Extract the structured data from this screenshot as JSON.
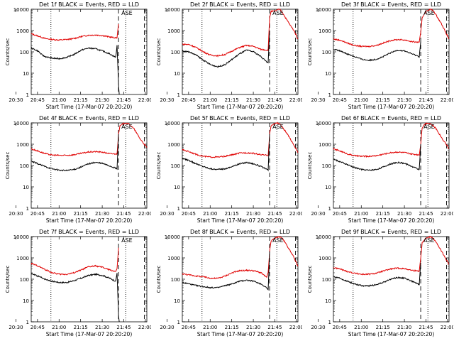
{
  "colors": {
    "events": "#000000",
    "lld": "#e00000",
    "axes": "#000000",
    "background": "#ffffff"
  },
  "x_tick_labels": [
    "20:30",
    "20:45",
    "21:00",
    "21:15",
    "21:30",
    "21:45",
    "22:00"
  ],
  "y_tick_labels": [
    "1",
    "10",
    "100",
    "1000",
    "10000"
  ],
  "markers": {
    "dotted_start_min": 34,
    "dashed_start_min": 81,
    "dotted_mid_min": 86,
    "dashed_end_min": 99
  },
  "chart_data": [
    {
      "type": "line",
      "title": "Det 1f BLACK = Events, RED = LLD",
      "xlabel": "Start Time (17-Mar-07 20:20:20)",
      "ylabel": "Counts/sec",
      "x_units": "minutes after 20:20:20",
      "xlim": [
        20.3,
        100.7
      ],
      "ylim": [
        1,
        10000
      ],
      "yscale": "log",
      "annotations": [
        "ASE"
      ],
      "series": [
        {
          "color": "#e00000",
          "x": [
            20.3,
            25,
            30,
            35,
            40,
            45,
            50,
            55,
            60,
            65,
            70,
            75,
            79,
            80,
            81
          ],
          "values": [
            700,
            560,
            420,
            380,
            360,
            380,
            420,
            520,
            600,
            620,
            580,
            500,
            450,
            470,
            2000
          ]
        },
        {
          "color": "#000000",
          "x": [
            20.3,
            25,
            28,
            30,
            35,
            40,
            45,
            50,
            55,
            60,
            65,
            70,
            75,
            79,
            80,
            81,
            81.5
          ],
          "values": [
            150,
            110,
            70,
            60,
            50,
            48,
            55,
            75,
            120,
            150,
            140,
            110,
            80,
            55,
            200,
            3,
            1
          ]
        }
      ]
    },
    {
      "type": "line",
      "title": "Det 2f BLACK = Events, RED = LLD",
      "xlabel": "Start Time (17-Mar-07 20:20:20)",
      "ylabel": "Counts/sec",
      "x_units": "minutes after 20:20:20",
      "xlim": [
        20.3,
        100.7
      ],
      "ylim": [
        1,
        10000
      ],
      "yscale": "log",
      "annotations": [
        "ASE"
      ],
      "series": [
        {
          "color": "#e00000",
          "x": [
            20.3,
            25,
            30,
            35,
            40,
            45,
            50,
            55,
            60,
            65,
            70,
            75,
            80,
            81,
            82,
            84,
            86,
            88,
            90,
            92,
            94,
            96,
            98,
            100.7
          ],
          "values": [
            230,
            220,
            160,
            100,
            70,
            65,
            75,
            110,
            160,
            200,
            180,
            130,
            120,
            4000,
            8000,
            8000,
            9000,
            10000,
            7000,
            4000,
            2500,
            1500,
            1000,
            400
          ]
        },
        {
          "color": "#000000",
          "x": [
            20.3,
            25,
            30,
            35,
            40,
            45,
            50,
            55,
            60,
            65,
            70,
            75,
            80,
            81
          ],
          "values": [
            110,
            100,
            70,
            40,
            25,
            20,
            25,
            45,
            80,
            120,
            100,
            60,
            30,
            1000
          ]
        }
      ]
    },
    {
      "type": "line",
      "title": "Det 3f BLACK = Events, RED = LLD",
      "xlabel": "Start Time (17-Mar-07 20:20:20)",
      "ylabel": "Counts/sec",
      "x_units": "minutes after 20:20:20",
      "xlim": [
        20.3,
        100.7
      ],
      "ylim": [
        1,
        10000
      ],
      "yscale": "log",
      "annotations": [
        "ASE"
      ],
      "series": [
        {
          "color": "#e00000",
          "x": [
            20.3,
            25,
            30,
            35,
            40,
            45,
            50,
            55,
            60,
            65,
            70,
            75,
            80,
            81,
            82,
            84,
            86,
            88,
            90,
            92,
            94,
            96,
            98,
            100.7
          ],
          "values": [
            400,
            350,
            260,
            200,
            180,
            180,
            200,
            260,
            340,
            380,
            360,
            300,
            280,
            800,
            4000,
            7000,
            9000,
            10000,
            8000,
            5000,
            3000,
            1800,
            900,
            400
          ]
        },
        {
          "color": "#000000",
          "x": [
            20.3,
            25,
            30,
            35,
            40,
            45,
            50,
            55,
            60,
            65,
            70,
            75,
            80,
            81
          ],
          "values": [
            130,
            110,
            80,
            60,
            45,
            40,
            45,
            60,
            90,
            120,
            110,
            80,
            60,
            300
          ]
        }
      ]
    },
    {
      "type": "line",
      "title": "Det 4f BLACK = Events, RED = LLD",
      "xlabel": "Start Time (17-Mar-07 20:20:20)",
      "ylabel": "Counts/sec",
      "x_units": "minutes after 20:20:20",
      "xlim": [
        20.3,
        100.7
      ],
      "ylim": [
        1,
        10000
      ],
      "yscale": "log",
      "annotations": [
        "ASE"
      ],
      "series": [
        {
          "color": "#e00000",
          "x": [
            20.3,
            25,
            30,
            35,
            40,
            45,
            50,
            55,
            60,
            65,
            70,
            75,
            80,
            81,
            82,
            84,
            86,
            88,
            90,
            92,
            94,
            96,
            98,
            100.7
          ],
          "values": [
            600,
            480,
            360,
            310,
            300,
            300,
            320,
            370,
            430,
            450,
            420,
            360,
            350,
            3000,
            7000,
            9000,
            10000,
            9000,
            7000,
            5000,
            3000,
            1800,
            1200,
            700
          ]
        },
        {
          "color": "#000000",
          "x": [
            20.3,
            25,
            30,
            35,
            40,
            45,
            50,
            55,
            60,
            65,
            70,
            75,
            80,
            81
          ],
          "values": [
            160,
            120,
            90,
            70,
            60,
            58,
            65,
            85,
            120,
            140,
            125,
            95,
            70,
            3000
          ]
        }
      ]
    },
    {
      "type": "line",
      "title": "Det 5f BLACK = Events, RED = LLD",
      "xlabel": "Start Time (17-Mar-07 20:20:20)",
      "ylabel": "Counts/sec",
      "x_units": "minutes after 20:20:20",
      "xlim": [
        20.3,
        100.7
      ],
      "ylim": [
        1,
        10000
      ],
      "yscale": "log",
      "annotations": [
        "ASE"
      ],
      "series": [
        {
          "color": "#e00000",
          "x": [
            20.3,
            25,
            30,
            35,
            40,
            45,
            50,
            55,
            60,
            65,
            70,
            75,
            80,
            81,
            82,
            84,
            86,
            88,
            90,
            92,
            94,
            96,
            98,
            100.7
          ],
          "values": [
            550,
            450,
            330,
            270,
            250,
            250,
            270,
            320,
            380,
            400,
            370,
            320,
            300,
            3000,
            7000,
            9000,
            10000,
            9000,
            6000,
            4000,
            2500,
            1500,
            900,
            400
          ]
        },
        {
          "color": "#000000",
          "x": [
            20.3,
            25,
            30,
            35,
            40,
            45,
            50,
            55,
            60,
            65,
            70,
            75,
            80,
            81
          ],
          "values": [
            220,
            170,
            120,
            90,
            70,
            65,
            70,
            90,
            120,
            140,
            120,
            90,
            60,
            3000
          ]
        }
      ]
    },
    {
      "type": "line",
      "title": "Det 6f BLACK = Events, RED = LLD",
      "xlabel": "Start Time (17-Mar-07 20:20:20)",
      "ylabel": "Counts/sec",
      "x_units": "minutes after 20:20:20",
      "xlim": [
        20.3,
        100.7
      ],
      "ylim": [
        1,
        10000
      ],
      "yscale": "log",
      "annotations": [
        "ASE"
      ],
      "series": [
        {
          "color": "#e00000",
          "x": [
            20.3,
            25,
            30,
            35,
            40,
            45,
            50,
            55,
            60,
            65,
            70,
            75,
            80,
            81,
            82,
            84,
            86,
            88,
            90,
            92,
            94,
            96,
            98,
            100.7
          ],
          "values": [
            600,
            480,
            350,
            290,
            270,
            270,
            290,
            340,
            400,
            430,
            400,
            340,
            320,
            1000,
            6000,
            9000,
            10000,
            9000,
            7000,
            5000,
            3000,
            1800,
            1200,
            600
          ]
        },
        {
          "color": "#000000",
          "x": [
            20.3,
            25,
            30,
            35,
            40,
            45,
            50,
            55,
            60,
            65,
            70,
            75,
            80,
            81
          ],
          "values": [
            200,
            150,
            110,
            80,
            65,
            60,
            65,
            85,
            120,
            140,
            125,
            90,
            65,
            1000
          ]
        }
      ]
    },
    {
      "type": "line",
      "title": "Det 7f BLACK = Events, RED = LLD",
      "xlabel": "Start Time (17-Mar-07 20:20:20)",
      "ylabel": "Counts/sec",
      "x_units": "minutes after 20:20:20",
      "xlim": [
        20.3,
        100.7
      ],
      "ylim": [
        1,
        10000
      ],
      "yscale": "log",
      "annotations": [
        "ASE"
      ],
      "series": [
        {
          "color": "#e00000",
          "x": [
            20.3,
            25,
            30,
            35,
            40,
            45,
            50,
            55,
            60,
            65,
            70,
            75,
            79,
            80,
            81
          ],
          "values": [
            550,
            420,
            280,
            200,
            170,
            170,
            200,
            270,
            380,
            420,
            360,
            270,
            230,
            300,
            3000
          ]
        },
        {
          "color": "#000000",
          "x": [
            20.3,
            25,
            30,
            35,
            40,
            45,
            50,
            55,
            60,
            65,
            70,
            75,
            79,
            80,
            81,
            81.5
          ],
          "values": [
            180,
            140,
            100,
            80,
            70,
            70,
            85,
            110,
            150,
            170,
            150,
            110,
            80,
            200,
            2,
            1
          ]
        }
      ]
    },
    {
      "type": "line",
      "title": "Det 8f BLACK = Events, RED = LLD",
      "xlabel": "Start Time (17-Mar-07 20:20:20)",
      "ylabel": "Counts/sec",
      "x_units": "minutes after 20:20:20",
      "xlim": [
        20.3,
        100.7
      ],
      "ylim": [
        1,
        10000
      ],
      "yscale": "log",
      "annotations": [
        "ASE"
      ],
      "series": [
        {
          "color": "#e00000",
          "x": [
            20.3,
            25,
            30,
            35,
            40,
            45,
            50,
            55,
            60,
            65,
            70,
            75,
            79,
            80,
            81,
            82,
            84,
            86,
            88,
            90,
            92,
            94,
            96,
            98,
            100.7
          ],
          "values": [
            180,
            160,
            140,
            130,
            110,
            110,
            140,
            200,
            250,
            260,
            250,
            200,
            120,
            200,
            2000,
            6000,
            8000,
            9000,
            10000,
            8000,
            5000,
            3000,
            1800,
            1000,
            400
          ]
        },
        {
          "color": "#000000",
          "x": [
            20.3,
            25,
            30,
            35,
            40,
            45,
            50,
            55,
            60,
            65,
            70,
            75,
            79,
            80,
            81
          ],
          "values": [
            70,
            60,
            50,
            45,
            40,
            40,
            50,
            60,
            80,
            90,
            80,
            60,
            40,
            30,
            2000
          ]
        }
      ]
    },
    {
      "type": "line",
      "title": "Det 9f BLACK = Events, RED = LLD",
      "xlabel": "Start Time (17-Mar-07 20:20:20)",
      "ylabel": "Counts/sec",
      "x_units": "minutes after 20:20:20",
      "xlim": [
        20.3,
        100.7
      ],
      "ylim": [
        1,
        10000
      ],
      "yscale": "log",
      "annotations": [
        "ASE"
      ],
      "series": [
        {
          "color": "#e00000",
          "x": [
            20.3,
            25,
            30,
            35,
            40,
            45,
            50,
            55,
            60,
            65,
            70,
            75,
            80,
            81,
            82,
            84,
            86,
            88,
            90,
            92,
            94,
            96,
            98,
            100.7
          ],
          "values": [
            350,
            300,
            230,
            190,
            170,
            170,
            190,
            240,
            300,
            330,
            310,
            260,
            240,
            1000,
            5000,
            8000,
            9000,
            10000,
            8000,
            5000,
            3000,
            1800,
            1000,
            500
          ]
        },
        {
          "color": "#000000",
          "x": [
            20.3,
            25,
            30,
            35,
            40,
            45,
            50,
            55,
            60,
            65,
            70,
            75,
            80,
            81
          ],
          "values": [
            130,
            110,
            80,
            60,
            50,
            48,
            55,
            70,
            100,
            120,
            110,
            80,
            55,
            600
          ]
        }
      ]
    }
  ]
}
